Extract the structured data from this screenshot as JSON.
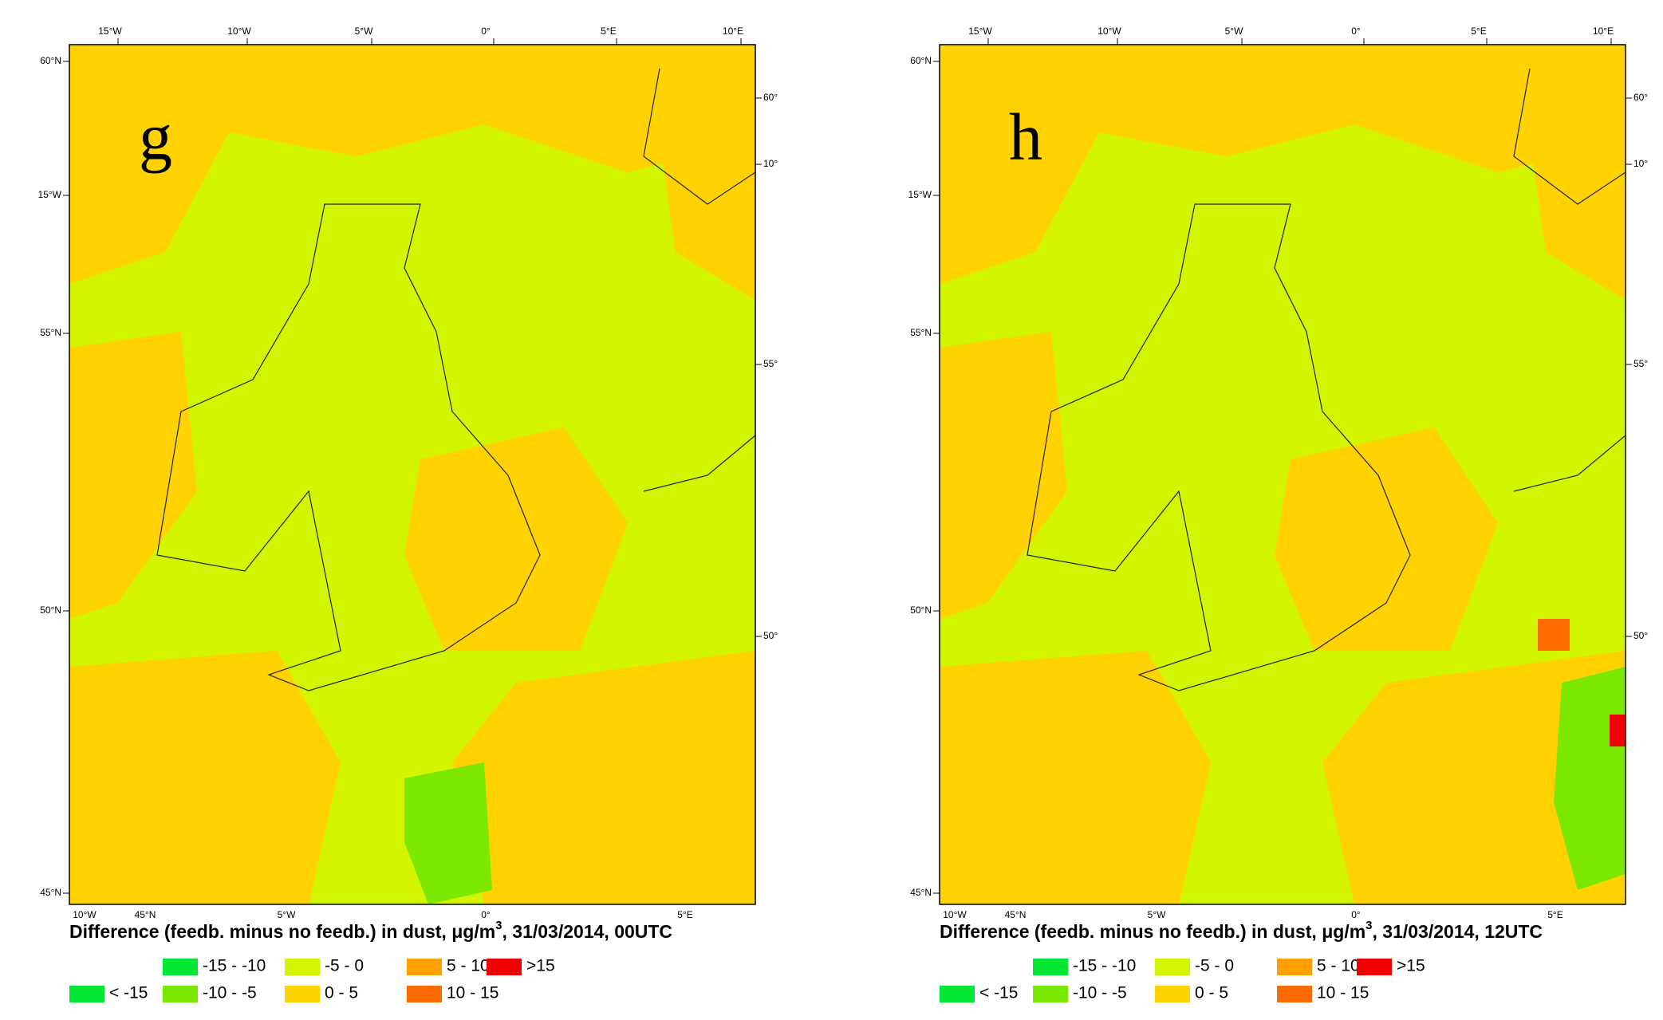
{
  "panels": [
    {
      "letter": "g",
      "caption_prefix": "Difference (feedb. minus no feedb.) in dust, μg/m",
      "caption_sup": "3",
      "caption_suffix": ", 31/03/2014, 00UTC",
      "top_labels": [
        "15°W",
        "10°W",
        "5°W",
        "0°",
        "5°E",
        "10°E"
      ],
      "left_labels": [
        "60°N",
        "15°W",
        "55°N",
        "50°N",
        "45°N"
      ],
      "right_labels": [
        "60°",
        "10°",
        "55°",
        "50°"
      ],
      "bottom_labels": [
        "10°W",
        "45°N",
        "5°W",
        "0°",
        "5°E"
      ],
      "legend": [
        {
          "label": "-15 - -10",
          "color": "#00e633"
        },
        {
          "label": "-5 - 0",
          "color": "#d4f500"
        },
        {
          "label": "5 - 10",
          "color": "#ffa000"
        },
        {
          "label": ">15",
          "color": "#f00000"
        },
        {
          "label": "< -15",
          "color": "#00e633"
        },
        {
          "label": "-10 - -5",
          "color": "#7ce800"
        },
        {
          "label": "0 - 5",
          "color": "#ffd200"
        },
        {
          "label": "10 - 15",
          "color": "#ff6a00"
        }
      ]
    },
    {
      "letter": "h",
      "caption_prefix": "Difference (feedb. minus no feedb.) in dust, μg/m",
      "caption_sup": "3",
      "caption_suffix": ", 31/03/2014, 12UTC",
      "top_labels": [
        "15°W",
        "10°W",
        "5°W",
        "0°",
        "5°E",
        "10°E"
      ],
      "left_labels": [
        "60°N",
        "15°W",
        "55°N",
        "50°N",
        "45°N"
      ],
      "right_labels": [
        "60°",
        "10°",
        "55°",
        "50°"
      ],
      "bottom_labels": [
        "10°W",
        "45°N",
        "5°W",
        "0°",
        "5°E"
      ],
      "legend": [
        {
          "label": "-15 - -10",
          "color": "#00e633"
        },
        {
          "label": "-5 - 0",
          "color": "#d4f500"
        },
        {
          "label": "5 - 10",
          "color": "#ffa000"
        },
        {
          "label": ">15",
          "color": "#f00000"
        },
        {
          "label": "< -15",
          "color": "#00e633"
        },
        {
          "label": "-10 - -5",
          "color": "#7ce800"
        },
        {
          "label": "0 - 5",
          "color": "#ffd200"
        },
        {
          "label": "10 - 15",
          "color": "#ff6a00"
        }
      ]
    }
  ]
}
